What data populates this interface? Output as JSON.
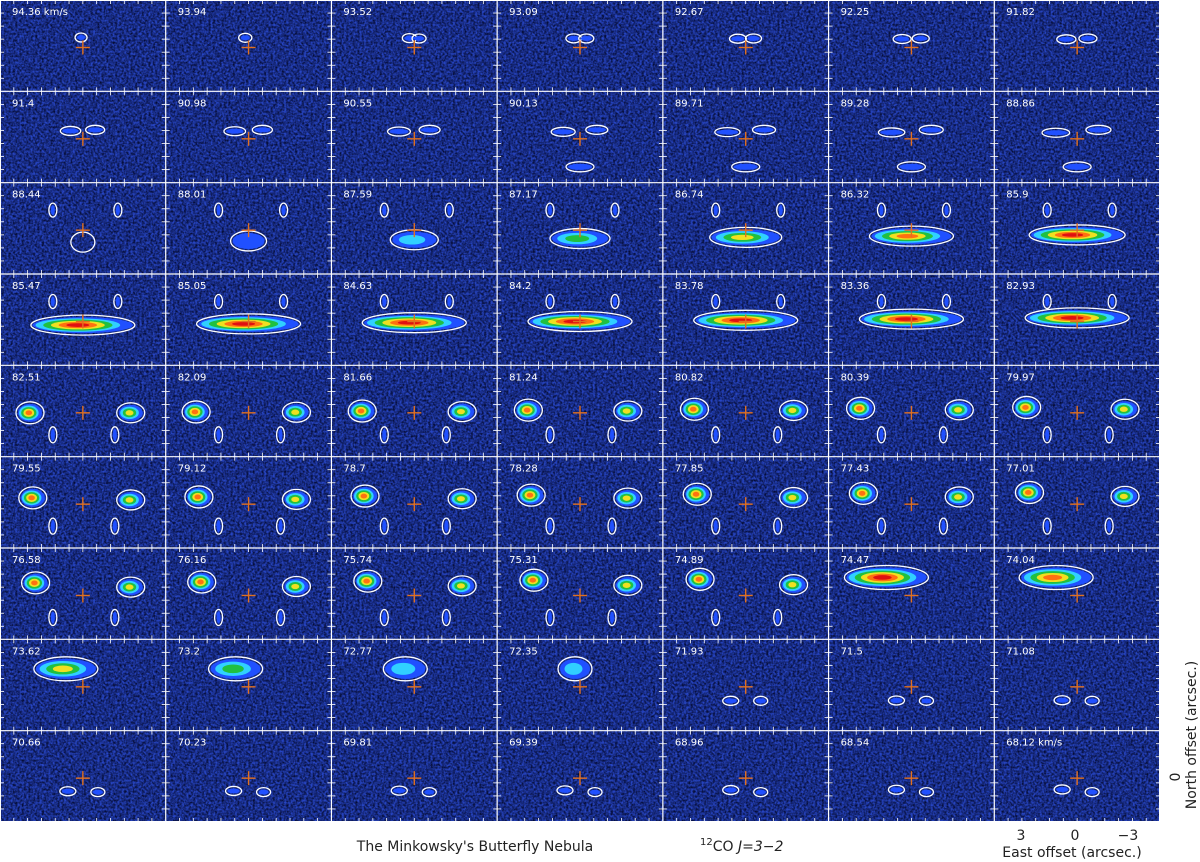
{
  "panels": [
    "94.36 km/s",
    "93.94",
    "93.52",
    "93.09",
    "92.67",
    "92.25",
    "91.82",
    "91.4",
    "90.98",
    "90.55",
    "90.13",
    "89.71",
    "89.28",
    "88.86",
    "88.44",
    "88.01",
    "87.59",
    "87.17",
    "86.74",
    "86.32",
    "85.9",
    "85.47",
    "85.05",
    "84.63",
    "84.2",
    "83.78",
    "83.36",
    "82.93",
    "82.51",
    "82.09",
    "81.66",
    "81.24",
    "80.82",
    "80.39",
    "79.97",
    "79.55",
    "79.12",
    "78.7",
    "78.28",
    "77.85",
    "77.43",
    "77.01",
    "76.58",
    "76.16",
    "75.74",
    "75.31",
    "74.89",
    "74.47",
    "74.04",
    "73.62",
    "73.2",
    "72.77",
    "72.35",
    "71.93",
    "71.5",
    "71.08",
    "70.66",
    "70.23",
    "69.81",
    "69.39",
    "68.96",
    "68.54",
    "68.12 km/s"
  ],
  "title": "The Minkowsky's Butterfly Nebula",
  "line": {
    "isotope": "12",
    "molecule": "CO",
    "transition": "J=3−2"
  },
  "x_axis": {
    "ticks": [
      "3",
      "0",
      "−3"
    ],
    "label": "East offset (arcsec.)"
  },
  "y_axis": {
    "tick": "0",
    "label": "North offset (arcsec.)"
  }
}
